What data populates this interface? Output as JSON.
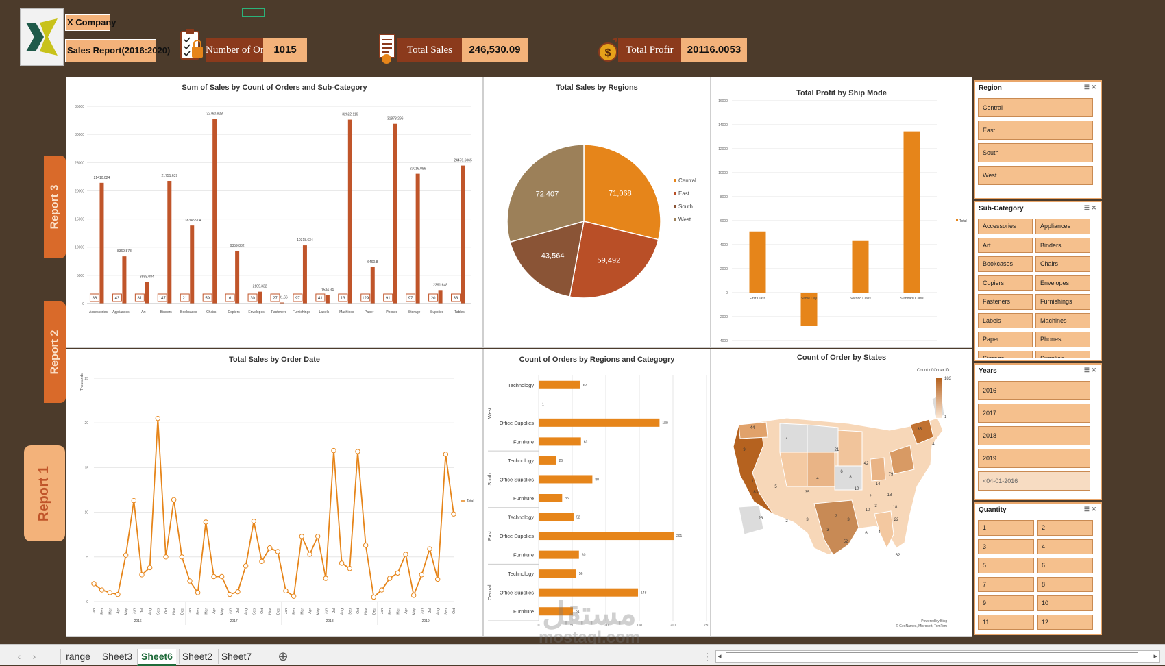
{
  "header": {
    "company": "X Company",
    "report_title": "Sales Report(2016:2020)",
    "kpis": [
      {
        "label": "Number of Orders",
        "value": "1015",
        "icon": "clipboard-icon"
      },
      {
        "label": "Total Sales",
        "value": "246,530.09",
        "icon": "invoice-icon"
      },
      {
        "label": "Total Profir",
        "value": "20116.0053",
        "icon": "dollar-coin-icon"
      }
    ]
  },
  "side_tabs": [
    "Report 3",
    "Report 2",
    "Report 1"
  ],
  "colors": {
    "bar": "#c0552a",
    "orange": "#e6851a",
    "central": "#e6851a",
    "east": "#b94f27",
    "south": "#8a5436",
    "west": "#9c8059",
    "bg": "#4c3b2b"
  },
  "chart1": {
    "title": "Sum of Sales by Count of Orders and Sub-Category"
  },
  "chart2": {
    "title": "Total Sales by Regions"
  },
  "chart3": {
    "title": "Total Profit by Ship Mode"
  },
  "chart4": {
    "title": "Total Sales by Order Date"
  },
  "chart5": {
    "title": "Count of Orders by Regions and Categogry"
  },
  "chart6": {
    "title": "Count of Order by States",
    "legend_title": "Count of Order ID",
    "legend_max": "183",
    "legend_min": "1",
    "credit1": "Powered by Bing",
    "credit2": "© GeoNames, Microsoft, TomTom"
  },
  "chart_data": [
    {
      "type": "bar",
      "categories": [
        "Accessories",
        "Appliances",
        "Art",
        "Binders",
        "Bookcases",
        "Chairs",
        "Copiers",
        "Envelopes",
        "Fasteners",
        "Furnishings",
        "Labels",
        "Machines",
        "Paper",
        "Phones",
        "Storage",
        "Supplies",
        "Tables"
      ],
      "values": [
        21410.024,
        8369.878,
        3858.084,
        21751.639,
        13834.9904,
        32760.928,
        9359.832,
        2109.332,
        181.66,
        10318.634,
        1534.34,
        32622.116,
        6460.8,
        31873.296,
        23016.086,
        2391.648,
        24476.6065
      ],
      "value_labels": [
        "21410.024",
        "8369.878",
        "3858.084",
        "21751.639",
        "13834.9904",
        "32760.928",
        "9359.832",
        "2109.332",
        "181.66",
        "10318.634",
        "1534.34",
        "32622.116",
        "6460.8",
        "31873.296",
        "23016.086",
        "2391.648",
        "24476.6065"
      ],
      "counts": [
        "86",
        "43",
        "81",
        "147",
        "21",
        "59",
        "6",
        "30",
        "27",
        "97",
        "41",
        "13",
        "129",
        "91",
        "97",
        "20",
        "33"
      ],
      "yticks": [
        "0",
        "5000",
        "10000",
        "15000",
        "20000",
        "25000",
        "30000",
        "35000"
      ],
      "ylim": [
        0,
        35000
      ]
    },
    {
      "type": "pie",
      "labels": [
        "Central",
        "East",
        "South",
        "West"
      ],
      "values": [
        71068,
        59492,
        43564,
        72407
      ],
      "value_labels": [
        "71,068",
        "59,492",
        "43,564",
        "72,407"
      ],
      "legend": "right"
    },
    {
      "type": "bar",
      "categories": [
        "First Class",
        "Same Day",
        "Second Class",
        "Standard Class"
      ],
      "values": [
        5100,
        -2800,
        4300,
        13450
      ],
      "yticks": [
        "-4000",
        "-2000",
        "0",
        "2000",
        "4000",
        "6000",
        "8000",
        "10000",
        "12000",
        "14000",
        "16000"
      ],
      "ylim": [
        -4000,
        16000
      ],
      "legend": [
        "Total"
      ]
    },
    {
      "type": "line",
      "ylabel": "Thousands",
      "yticks": [
        "0",
        "5",
        "10",
        "15",
        "20",
        "25"
      ],
      "ylim": [
        0,
        25
      ],
      "months": [
        "Jan",
        "Feb",
        "Mar",
        "Apr",
        "May",
        "Jun",
        "Jul",
        "Aug",
        "Sep",
        "Oct",
        "Nov",
        "Dec"
      ],
      "years": [
        "2016",
        "2017",
        "2018",
        "2019"
      ],
      "values": [
        2,
        1.3,
        1,
        0.8,
        5.2,
        11.3,
        3,
        3.8,
        20.5,
        5,
        11.4,
        5,
        2.3,
        1,
        8.9,
        2.8,
        2.8,
        0.8,
        1.1,
        4,
        9,
        4.5,
        6,
        5.6,
        1.2,
        0.6,
        7.3,
        5.3,
        7.3,
        2.6,
        16.9,
        4.3,
        3.7,
        16.8,
        6.3,
        0.5,
        1.3,
        2.6,
        3.2,
        5.3,
        0.7,
        3,
        5.9,
        2.5,
        16.5,
        9.8
      ],
      "legend": [
        "Total"
      ]
    },
    {
      "type": "bar",
      "orientation": "horizontal",
      "groups": [
        "West",
        "South",
        "East",
        "Central"
      ],
      "categories": [
        "Technology",
        "?",
        "Office Supplies",
        "Furniture",
        "Technology",
        "Office Supplies",
        "Furniture",
        "Technology",
        "Office Supplies",
        "Furniture",
        "Technology",
        "Office Supplies",
        "Furniture"
      ],
      "values": [
        62,
        1,
        180,
        63,
        26,
        80,
        35,
        52,
        201,
        60,
        56,
        148,
        51
      ],
      "xticks": [
        "0",
        "50",
        "100",
        "150",
        "200",
        "250"
      ],
      "xlim": [
        0,
        250
      ]
    }
  ],
  "slicers": {
    "region": {
      "title": "Region",
      "items": [
        "Central",
        "East",
        "South",
        "West"
      ]
    },
    "subcategory": {
      "title": "Sub-Category",
      "items": [
        "Accessories",
        "Appliances",
        "Art",
        "Binders",
        "Bookcases",
        "Chairs",
        "Copiers",
        "Envelopes",
        "Fasteners",
        "Furnishings",
        "Labels",
        "Machines",
        "Paper",
        "Phones",
        "Storage",
        "Supplies"
      ]
    },
    "years": {
      "title": "Years",
      "items": [
        "2016",
        "2017",
        "2018",
        "2019",
        "<04-01-2016"
      ]
    },
    "quantity": {
      "title": "Quantity",
      "items": [
        "1",
        "2",
        "3",
        "4",
        "5",
        "6",
        "7",
        "8",
        "9",
        "10",
        "11",
        "12"
      ]
    }
  },
  "sheet_tabs": [
    "range",
    "Sheet3",
    "Sheet6",
    "Sheet2",
    "Sheet7"
  ],
  "active_tab": "Sheet6",
  "map_labels": [
    "44",
    "4",
    "21",
    "9",
    "1",
    "5",
    "35",
    "4",
    "6",
    "42",
    "183",
    "8",
    "23",
    "2",
    "3",
    "3",
    "52",
    "10",
    "14",
    "79",
    "135",
    "4",
    "18",
    "18",
    "2",
    "3",
    "10",
    "22",
    "62",
    "6",
    "4",
    "3",
    "2"
  ]
}
